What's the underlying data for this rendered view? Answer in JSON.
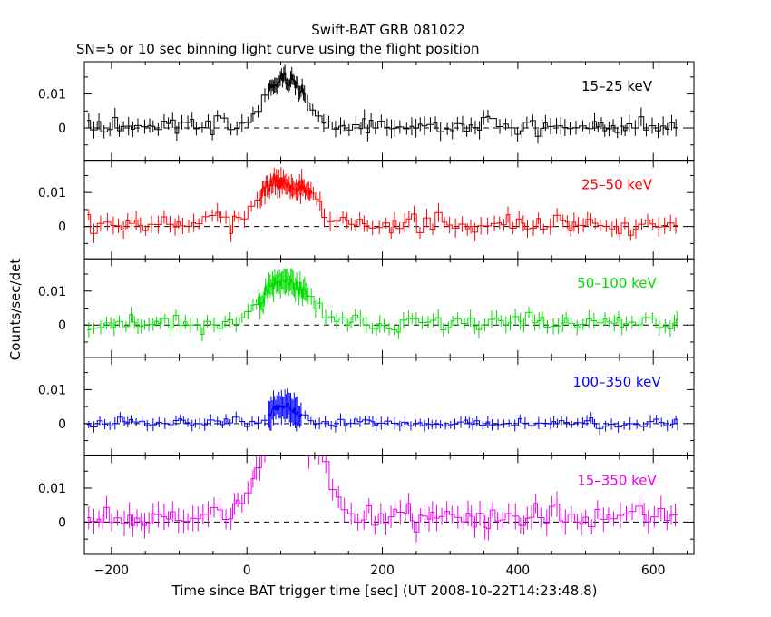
{
  "chart_data": {
    "type": "line",
    "title": "Swift-BAT GRB 081022",
    "subtitle": "SN=5 or 10 sec binning light curve using the flight position",
    "xlabel": "Time since BAT trigger time [sec] (UT 2008-10-22T14:23:48.8)",
    "ylabel": "Counts/sec/det",
    "xlim": [
      -240,
      660
    ],
    "ylim": [
      -0.0095,
      0.0195
    ],
    "x_ticks": [
      -200,
      0,
      200,
      400,
      600
    ],
    "x_tick_labels": [
      "−200",
      "0",
      "200",
      "400",
      "600"
    ],
    "y_ticks": [
      0,
      0.01
    ],
    "y_tick_labels": [
      "0",
      "0.01"
    ],
    "baseline_style": "dashed at y=0",
    "style": "step histogram with vertical error bars",
    "panels": [
      {
        "band": "15–25 keV",
        "color": "#000000",
        "base": 0.0005,
        "noise": 0.0012,
        "err": 0.0022,
        "err_pulse": 0.002,
        "pulse": [
          {
            "center": 55,
            "width": 25,
            "amp": 0.014
          },
          {
            "center": 95,
            "width": 15,
            "amp": 0.003
          }
        ],
        "high_res": [
          30,
          85
        ],
        "seed": 3
      },
      {
        "band": "25–50 keV",
        "color": "#ff0000",
        "base": 0.0008,
        "noise": 0.0014,
        "err": 0.0022,
        "err_pulse": 0.0025,
        "pulse": [
          {
            "center": 45,
            "width": 30,
            "amp": 0.012
          },
          {
            "center": 95,
            "width": 18,
            "amp": 0.006
          }
        ],
        "high_res": [
          15,
          95
        ],
        "seed": 7
      },
      {
        "band": "50–100 keV",
        "color": "#00dd00",
        "base": 0.0005,
        "noise": 0.0012,
        "err": 0.002,
        "err_pulse": 0.003,
        "pulse": [
          {
            "center": 50,
            "width": 28,
            "amp": 0.012
          },
          {
            "center": 90,
            "width": 15,
            "amp": 0.004
          }
        ],
        "high_res": [
          15,
          90
        ],
        "seed": 11
      },
      {
        "band": "100–350 keV",
        "color": "#0000ff",
        "base": 0.0002,
        "noise": 0.0008,
        "err": 0.0015,
        "err_pulse": 0.004,
        "pulse": [
          {
            "center": 55,
            "width": 20,
            "amp": 0.005
          }
        ],
        "high_res": [
          25,
          80
        ],
        "seed": 19
      },
      {
        "band": "15–350 keV",
        "color": "#ee00ee",
        "base": 0.0015,
        "noise": 0.002,
        "err": 0.003,
        "err_pulse": 0.003,
        "pulse": [
          {
            "center": 55,
            "width": 35,
            "amp": 0.025
          },
          {
            "center": 110,
            "width": 25,
            "amp": 0.01
          }
        ],
        "high_res": [],
        "seed": 23
      }
    ]
  }
}
